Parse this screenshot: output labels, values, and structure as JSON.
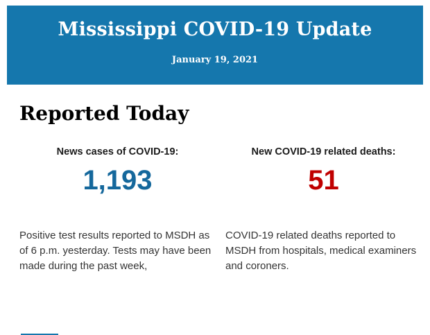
{
  "header": {
    "bg_color": "#1577ad",
    "title": "Mississippi COVID-19 Update",
    "date": "January 19, 2021",
    "text_color": "#ffffff"
  },
  "main": {
    "section_title": "Reported Today",
    "stats": [
      {
        "label": "News cases of COVID-19:",
        "value": "1,193",
        "value_color": "#15689c",
        "description": "Positive test results reported to MSDH as of 6 p.m. yesterday. Tests may have been made during the past week,"
      },
      {
        "label": "New COVID-19 related deaths:",
        "value": "51",
        "value_color": "#c00000",
        "description": "COVID-19 related deaths reported to MSDH from hospitals, medical examiners and coroners."
      }
    ]
  },
  "footer": {
    "partial_next_section_color": "#1577ad"
  }
}
